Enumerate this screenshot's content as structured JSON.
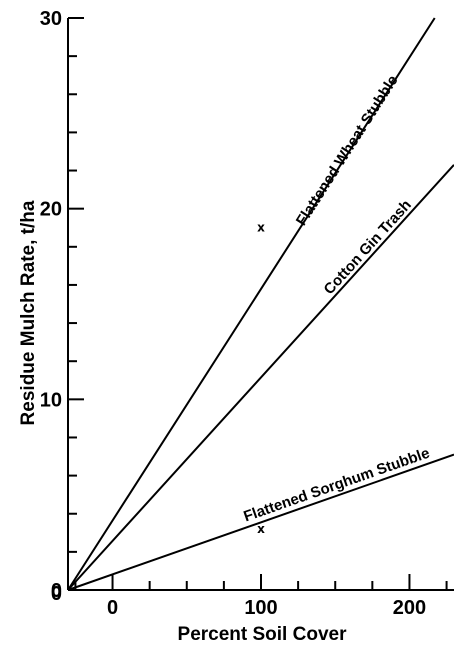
{
  "chart_data": {
    "type": "line",
    "title": "",
    "xlabel": "Percent Soil Cover",
    "ylabel": "Residue Mulch Rate, t/ha",
    "xlim": [
      -30,
      230
    ],
    "ylim": [
      0,
      30
    ],
    "xticks": [
      0,
      100,
      200
    ],
    "yticks": [
      0,
      10,
      20,
      30
    ],
    "grid": false,
    "series": [
      {
        "name": "Flattened Wheat Stubble",
        "x": [
          -30,
          217
        ],
        "y": [
          0,
          30
        ],
        "color": "#000000"
      },
      {
        "name": "Cotton Gin Trash",
        "x": [
          -30,
          230
        ],
        "y": [
          0,
          22.3
        ],
        "color": "#000000"
      },
      {
        "name": "Flattened Sorghum Stubble",
        "x": [
          -30,
          230
        ],
        "y": [
          0,
          7.1
        ],
        "color": "#000000"
      }
    ],
    "points": [
      {
        "x": 100,
        "y": 19.0,
        "marker": "x"
      },
      {
        "x": 100,
        "y": 3.2,
        "marker": "x"
      }
    ]
  }
}
